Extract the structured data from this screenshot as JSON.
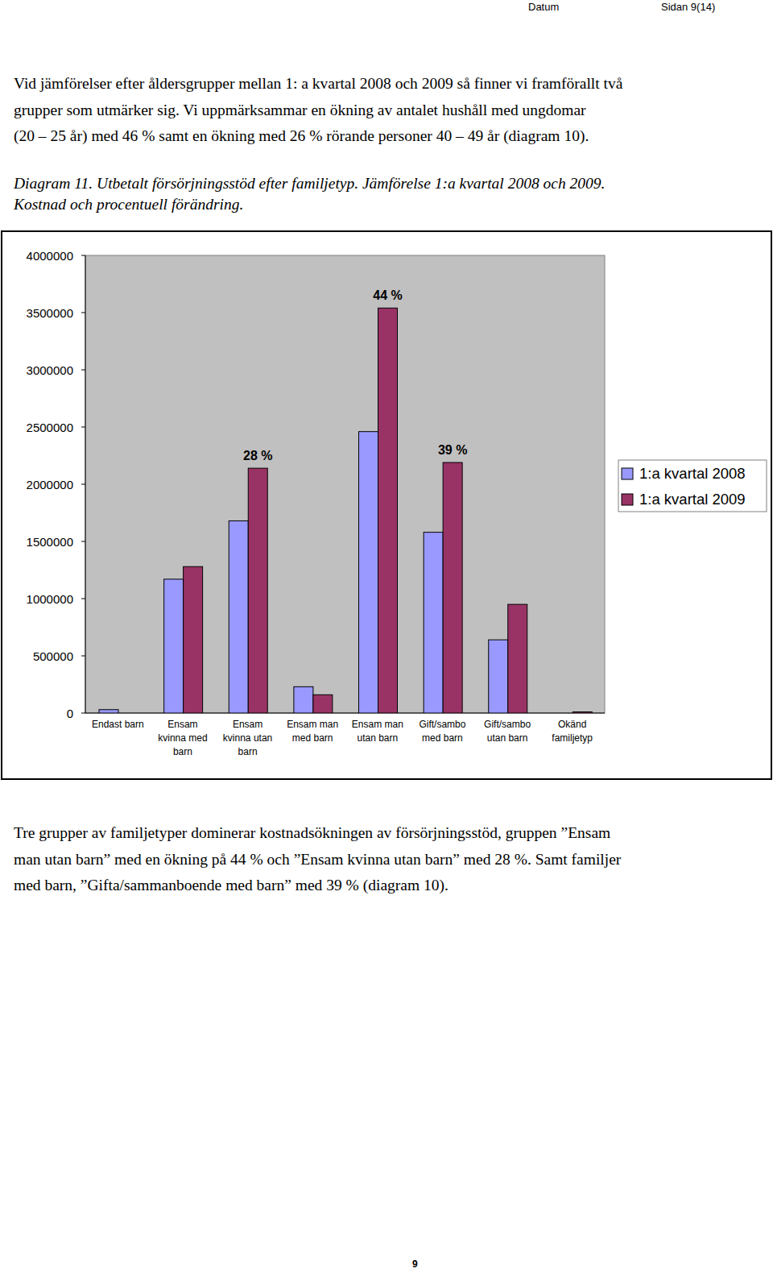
{
  "header": {
    "left": "Datum",
    "right": "Sidan 9(14)"
  },
  "intro": {
    "lines": [
      "Vid jämförelser efter åldersgrupper mellan 1: a kvartal 2008 och 2009 så finner vi framförallt två",
      "grupper som utmärker sig. Vi uppmärksammar en ökning av antalet hushåll med ungdomar",
      "(20 – 25 år) med 46 % samt en ökning med 26 % rörande personer 40 – 49 år (diagram 10)."
    ]
  },
  "caption": {
    "lines": [
      "Diagram 11. Utbetalt försörjningsstöd efter familjetyp. Jämförelse 1:a kvartal 2008 och 2009.",
      "Kostnad och procentuell förändring."
    ]
  },
  "chart_data": {
    "type": "bar",
    "categories": [
      "Endast barn",
      "Ensam kvinna med barn",
      "Ensam kvinna utan barn",
      "Ensam man med barn",
      "Ensam man utan barn",
      "Gift/sambo med barn",
      "Gift/sambo utan barn",
      "Okänd familjetyp"
    ],
    "series": [
      {
        "name": "1:a kvartal 2008",
        "color": "#9999ff",
        "values": [
          30000,
          1170000,
          1680000,
          230000,
          2460000,
          1580000,
          640000,
          0
        ]
      },
      {
        "name": "1:a kvartal 2009",
        "color": "#993366",
        "values": [
          0,
          1280000,
          2140000,
          160000,
          3540000,
          2190000,
          950000,
          10000
        ]
      }
    ],
    "annotations": [
      {
        "text": "28 %",
        "category": "Ensam kvinna utan barn"
      },
      {
        "text": "44 %",
        "category": "Ensam man utan barn"
      },
      {
        "text": "39 %",
        "category": "Gift/sambo med barn"
      }
    ],
    "ylim": [
      0,
      4000000
    ],
    "yticks": [
      0,
      500000,
      1000000,
      1500000,
      2000000,
      2500000,
      3000000,
      3500000,
      4000000
    ],
    "grid": false,
    "legend": "right"
  },
  "conclusion": {
    "lines": [
      "Tre grupper av familjetyper dominerar kostnadsökningen av försörjningsstöd, gruppen ”Ensam",
      "man utan barn” med en ökning på 44 % och ”Ensam kvinna utan barn” med 28 %. Samt familjer",
      "med barn, ”Gifta/sammanboende med barn” med 39 % (diagram 10)."
    ]
  },
  "footer": {
    "page_number": "9"
  }
}
